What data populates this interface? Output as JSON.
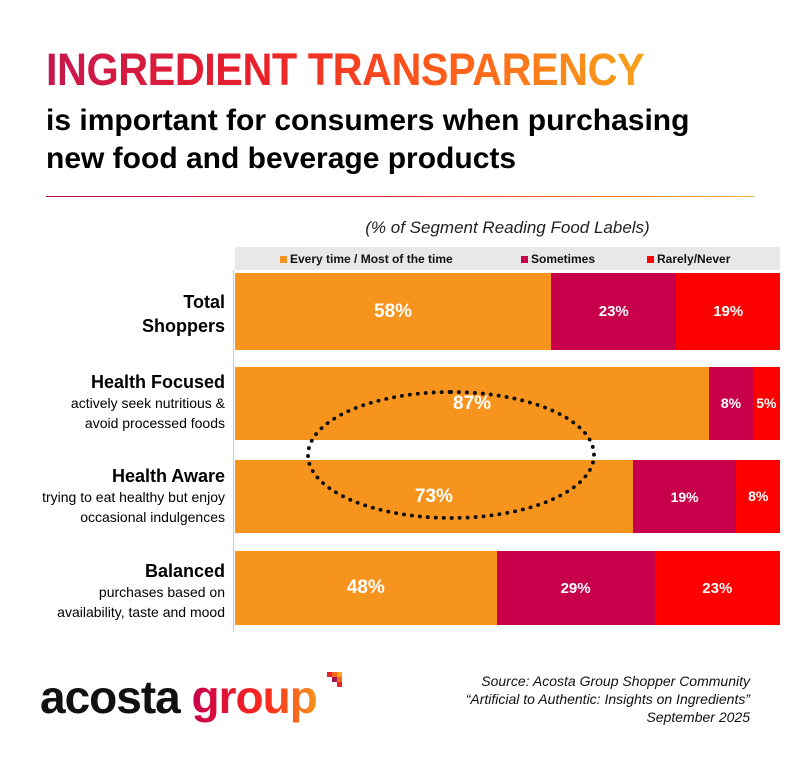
{
  "header": {
    "title": "INGREDIENT TRANSPARENCY",
    "subtitle_line1": "is important for consumers when purchasing",
    "subtitle_line2": "new food and beverage products"
  },
  "chart_data": {
    "type": "bar",
    "orientation": "horizontal",
    "stacked": true,
    "title": "(% of Segment Reading Food Labels)",
    "legend": [
      "Every time / Most of the time",
      "Sometimes",
      "Rarely/Never"
    ],
    "legend_placement": "top",
    "colors": [
      "#F7941D",
      "#C8004B",
      "#FF0000"
    ],
    "categories": [
      {
        "name": "Total Shoppers",
        "name_line1": "Total",
        "name_line2": "Shoppers",
        "description": []
      },
      {
        "name": "Health Focused",
        "name_line1": "Health Focused",
        "description": [
          "actively seek nutritious &",
          "avoid processed foods"
        ]
      },
      {
        "name": "Health Aware",
        "name_line1": "Health Aware",
        "description": [
          "trying to eat healthy but enjoy",
          "occasional indulgences"
        ]
      },
      {
        "name": "Balanced",
        "name_line1": "Balanced",
        "description": [
          "purchases based on",
          "availability, taste and mood"
        ]
      }
    ],
    "series": [
      {
        "name": "Every time / Most of the time",
        "values": [
          58,
          87,
          73,
          48
        ],
        "labels": [
          "58%",
          "87%",
          "73%",
          "48%"
        ]
      },
      {
        "name": "Sometimes",
        "values": [
          23,
          8,
          19,
          29
        ],
        "labels": [
          "23%",
          "8%",
          "19%",
          "29%"
        ]
      },
      {
        "name": "Rarely/Never",
        "values": [
          19,
          5,
          8,
          23
        ],
        "labels": [
          "19%",
          "5%",
          "8%",
          "23%"
        ]
      }
    ],
    "xlim": [
      0,
      100
    ]
  },
  "logo": {
    "text1": "acosta",
    "text2": "group"
  },
  "source": {
    "line1": "Source: Acosta Group Shopper Community",
    "line2": "“Artificial to Authentic: Insights on Ingredients”",
    "line3": "September 2025"
  }
}
